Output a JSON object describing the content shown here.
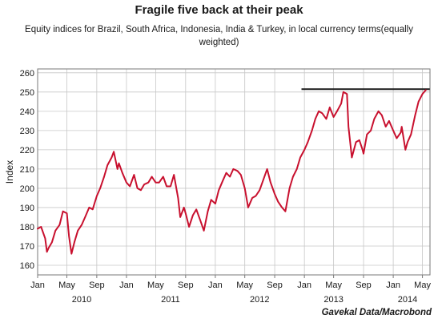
{
  "title": "Fragile five back at their peak",
  "subtitle": "Equity indices for Brazil, South Africa, Indonesia, India & Turkey, in local currency terms(equally weighted)",
  "source": "Gavekal Data/Macrobond",
  "colors": {
    "series": "#c8102e",
    "reference": "#1a1a1a",
    "grid": "#c7c7c7",
    "axis": "#7a7a7a"
  },
  "chart_data": {
    "type": "line",
    "ylabel": "Index",
    "xlabel": "",
    "ylim": [
      155,
      262
    ],
    "y_ticks": [
      160,
      170,
      180,
      190,
      200,
      210,
      220,
      230,
      240,
      250,
      260
    ],
    "grid": true,
    "x_month_ticks": [
      {
        "label": "Jan",
        "date": "2010-01"
      },
      {
        "label": "May",
        "date": "2010-05"
      },
      {
        "label": "Sep",
        "date": "2010-09"
      },
      {
        "label": "Jan",
        "date": "2011-01"
      },
      {
        "label": "May",
        "date": "2011-05"
      },
      {
        "label": "Sep",
        "date": "2011-09"
      },
      {
        "label": "Jan",
        "date": "2012-01"
      },
      {
        "label": "May",
        "date": "2012-05"
      },
      {
        "label": "Sep",
        "date": "2012-09"
      },
      {
        "label": "Jan",
        "date": "2013-01"
      },
      {
        "label": "May",
        "date": "2013-05"
      },
      {
        "label": "Sep",
        "date": "2013-09"
      },
      {
        "label": "Jan",
        "date": "2014-01"
      },
      {
        "label": "May",
        "date": "2014-05"
      }
    ],
    "x_year_labels": [
      {
        "label": "2010",
        "date": "2010-07"
      },
      {
        "label": "2011",
        "date": "2011-07"
      },
      {
        "label": "2012",
        "date": "2012-07"
      },
      {
        "label": "2013",
        "date": "2013-05"
      },
      {
        "label": "2014",
        "date": "2014-03"
      }
    ],
    "series": [
      {
        "x": [
          "2010-01",
          "2010-01-15",
          "2010-02",
          "2010-02-08",
          "2010-02-15",
          "2010-03",
          "2010-03-15",
          "2010-04",
          "2010-04-15",
          "2010-05",
          "2010-05-10",
          "2010-05-20",
          "2010-06",
          "2010-06-15",
          "2010-07",
          "2010-07-15",
          "2010-08",
          "2010-08-15",
          "2010-09",
          "2010-09-15",
          "2010-10",
          "2010-10-15",
          "2010-11",
          "2010-11-10",
          "2010-11-25",
          "2010-12",
          "2010-12-15",
          "2011-01",
          "2011-01-15",
          "2011-02",
          "2011-02-15",
          "2011-03",
          "2011-03-15",
          "2011-04",
          "2011-04-15",
          "2011-05",
          "2011-05-15",
          "2011-06",
          "2011-06-15",
          "2011-07",
          "2011-07-15",
          "2011-08",
          "2011-08-10",
          "2011-08-25",
          "2011-09",
          "2011-09-15",
          "2011-10",
          "2011-10-15",
          "2011-11",
          "2011-11-15",
          "2011-12",
          "2011-12-15",
          "2012-01",
          "2012-01-15",
          "2012-02",
          "2012-02-15",
          "2012-03",
          "2012-03-15",
          "2012-04",
          "2012-04-15",
          "2012-05",
          "2012-05-15",
          "2012-06",
          "2012-06-15",
          "2012-07",
          "2012-07-15",
          "2012-08",
          "2012-08-15",
          "2012-09",
          "2012-09-15",
          "2012-10",
          "2012-10-15",
          "2012-11",
          "2012-11-15",
          "2012-12",
          "2012-12-15",
          "2013-01",
          "2013-01-15",
          "2013-02",
          "2013-02-15",
          "2013-03",
          "2013-03-15",
          "2013-04",
          "2013-04-15",
          "2013-05",
          "2013-05-15",
          "2013-06",
          "2013-06-10",
          "2013-06-25",
          "2013-07",
          "2013-07-15",
          "2013-08",
          "2013-08-15",
          "2013-08-28",
          "2013-09",
          "2013-09-15",
          "2013-10",
          "2013-10-15",
          "2013-11",
          "2013-11-15",
          "2013-12",
          "2013-12-15",
          "2014-01",
          "2014-01-15",
          "2014-02",
          "2014-02-05",
          "2014-02-20",
          "2014-03",
          "2014-03-15",
          "2014-04",
          "2014-04-15",
          "2014-05",
          "2014-05-15"
        ],
        "y": [
          179,
          180,
          174,
          167,
          169,
          172,
          178,
          181,
          188,
          187,
          175,
          166,
          172,
          178,
          181,
          185,
          190,
          189,
          196,
          200,
          206,
          212,
          216,
          219,
          210,
          213,
          208,
          203,
          201,
          207,
          200,
          199,
          202,
          203,
          206,
          203,
          203,
          206,
          201,
          201,
          207,
          195,
          185,
          190,
          187,
          180,
          186,
          189,
          183,
          178,
          188,
          194,
          192,
          199,
          204,
          208,
          206,
          210,
          209,
          207,
          200,
          190,
          195,
          196,
          199,
          204,
          210,
          203,
          197,
          193,
          190,
          188,
          200,
          206,
          210,
          216,
          220,
          224,
          230,
          236,
          240,
          239,
          236,
          242,
          237,
          240,
          244,
          250,
          249,
          232,
          216,
          224,
          225,
          220,
          218,
          228,
          230,
          236,
          240,
          238,
          232,
          235,
          230,
          226,
          229,
          232,
          220,
          224,
          228,
          238,
          245,
          249,
          251
        ],
        "color": "#c8102e"
      }
    ],
    "reference_line": {
      "y": 251.5,
      "x_start": "2012-12-20",
      "x_end": "2014-05-31",
      "color": "#1a1a1a"
    }
  }
}
